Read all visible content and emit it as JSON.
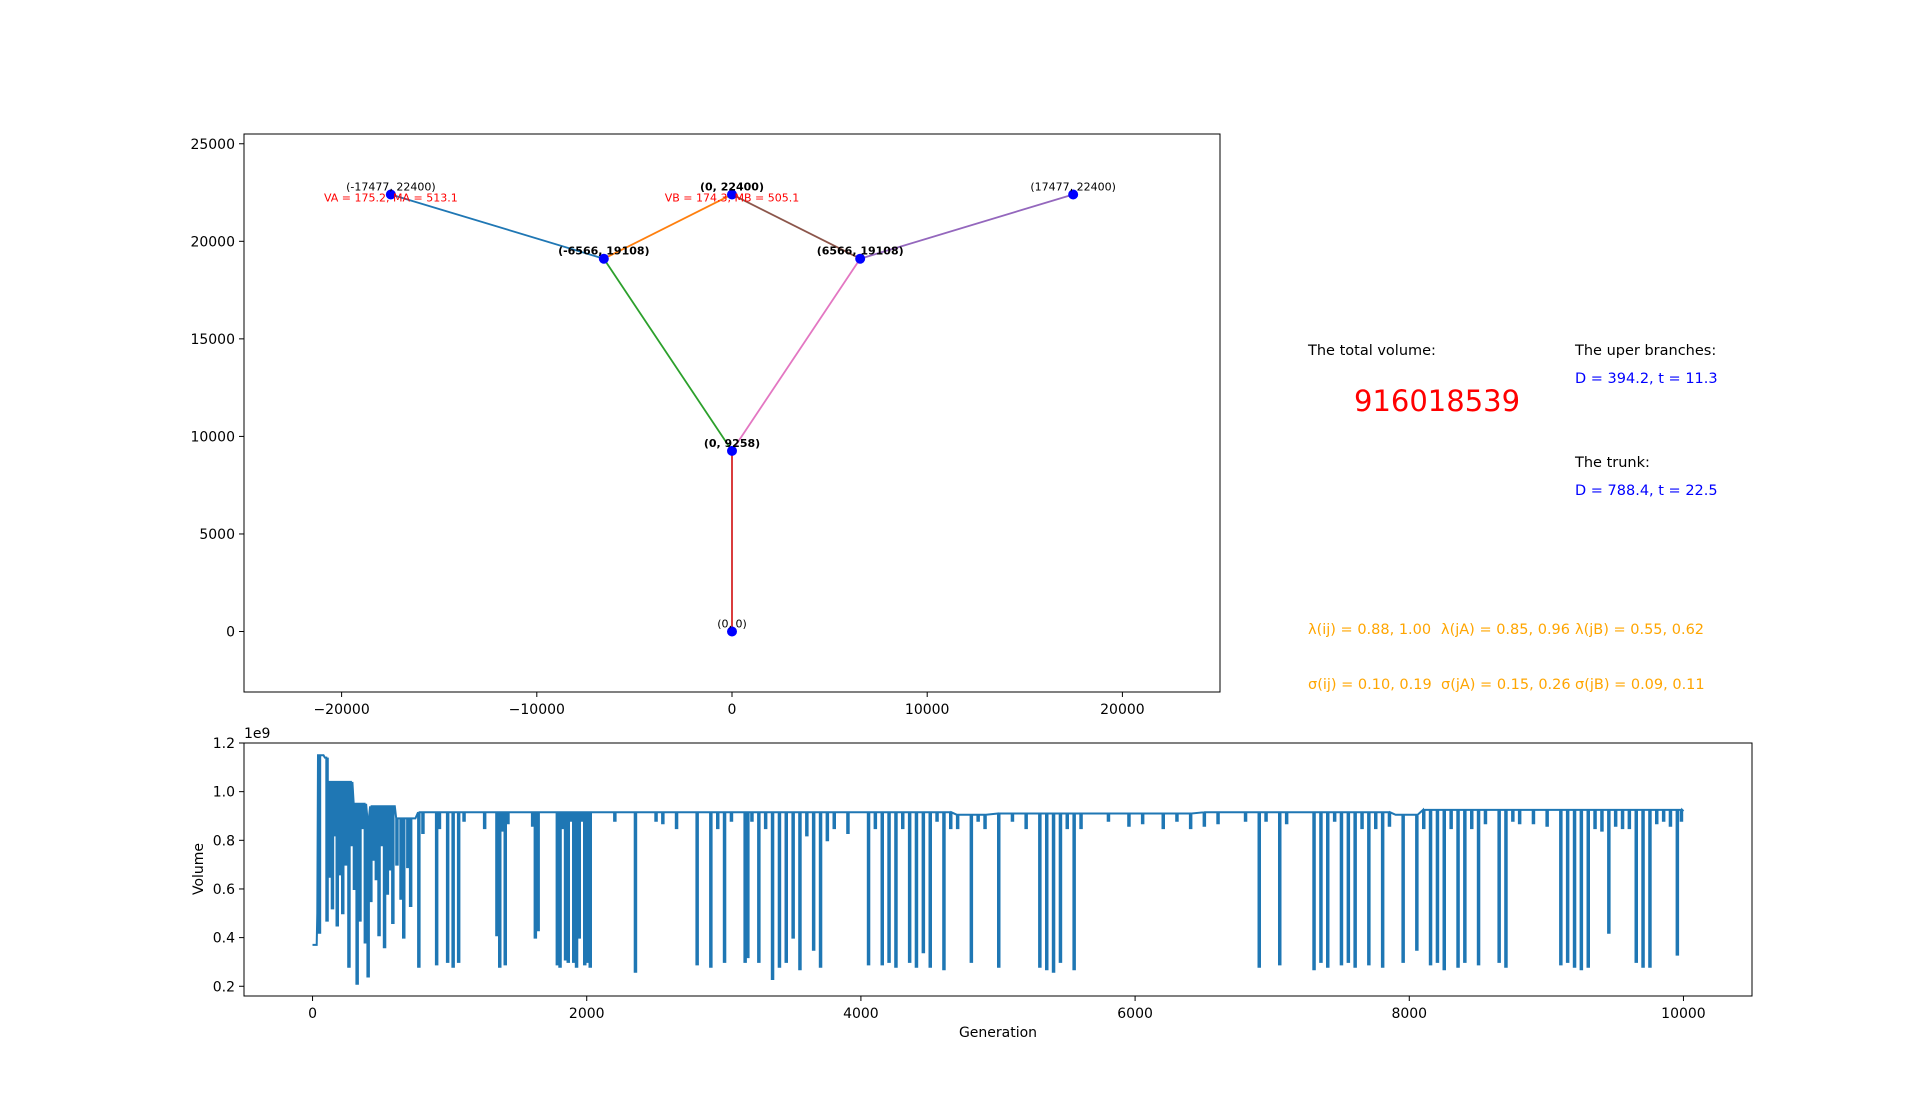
{
  "colors": {
    "axis": "#000000",
    "node": "#0000ff",
    "label_red": "#ff0000",
    "info_blue": "#0000ff",
    "info_orange": "#ffa500",
    "line_volume": "#1f77b4"
  },
  "info": {
    "total_volume_label": "The total volume:",
    "total_volume_value": "916018539",
    "upper_branches_label": "The uper branches:",
    "upper_branches_value": "D = 394.2, t = 11.3",
    "trunk_label": "The trunk:",
    "trunk_value": "D = 788.4, t = 22.5",
    "lambda_ij": "λ(ij) = 0.88, 1.00",
    "lambda_jA": "λ(jA) = 0.85, 0.96",
    "lambda_jB": "λ(jB) = 0.55, 0.62",
    "sigma_ij": "σ(ij) = 0.10, 0.19",
    "sigma_jA": "σ(jA) = 0.15, 0.26",
    "sigma_jB": "σ(jB) = 0.09, 0.11"
  },
  "chart_data": [
    {
      "type": "network",
      "xlim": [
        -25000,
        25000
      ],
      "ylim": [
        -3100,
        25500
      ],
      "x_ticks": [
        -20000,
        -10000,
        0,
        10000,
        20000
      ],
      "x_tick_labels": [
        "−20000",
        "−10000",
        "0",
        "10000",
        "20000"
      ],
      "y_ticks": [
        0,
        5000,
        10000,
        15000,
        20000,
        25000
      ],
      "y_tick_labels": [
        "0",
        "5000",
        "10000",
        "15000",
        "20000",
        "25000"
      ],
      "nodes": [
        {
          "id": "A",
          "x": -17477,
          "y": 22400,
          "label": "(-17477, 22400)",
          "bold": false
        },
        {
          "id": "B",
          "x": 0,
          "y": 22400,
          "label": "(0, 22400)",
          "bold": true
        },
        {
          "id": "C",
          "x": 17477,
          "y": 22400,
          "label": "(17477, 22400)",
          "bold": false
        },
        {
          "id": "JA",
          "x": -6566,
          "y": 19108,
          "label": "(-6566, 19108)",
          "bold": true
        },
        {
          "id": "JB",
          "x": 6566,
          "y": 19108,
          "label": "(6566, 19108)",
          "bold": true
        },
        {
          "id": "J",
          "x": 0,
          "y": 9258,
          "label": "(0, 9258)",
          "bold": true
        },
        {
          "id": "O",
          "x": 0,
          "y": 0,
          "label": "(0, 0)",
          "bold": false
        }
      ],
      "edges": [
        {
          "from": "A",
          "to": "JA",
          "color": "#1f77b4"
        },
        {
          "from": "JA",
          "to": "B",
          "color": "#ff7f0e"
        },
        {
          "from": "JA",
          "to": "J",
          "color": "#2ca02c"
        },
        {
          "from": "J",
          "to": "O",
          "color": "#d62728"
        },
        {
          "from": "C",
          "to": "JB",
          "color": "#9467bd"
        },
        {
          "from": "B",
          "to": "JB",
          "color": "#8c564b"
        },
        {
          "from": "JB",
          "to": "J",
          "color": "#e377c2"
        }
      ],
      "annotations": [
        {
          "text": "VA = 175.2, MA = 513.1",
          "x": -17477,
          "y": 22400
        },
        {
          "text": "VB = 174.3, MB = 505.1",
          "x": 0,
          "y": 22400
        }
      ]
    },
    {
      "type": "line",
      "xlabel": "Generation",
      "ylabel": "Volume",
      "offset_text": "1e9",
      "xlim": [
        -500,
        10500
      ],
      "ylim": [
        0.16,
        1.2
      ],
      "x_ticks": [
        0,
        2000,
        4000,
        6000,
        8000,
        10000
      ],
      "y_ticks": [
        0.2,
        0.4,
        0.6,
        0.8,
        1.0,
        1.2
      ],
      "y_tick_labels": [
        "0.2",
        "0.4",
        "0.6",
        "0.8",
        "1.0",
        "1.2"
      ],
      "baseline_points": [
        {
          "x": 0,
          "y": 0.37
        },
        {
          "x": 30,
          "y": 0.37
        },
        {
          "x": 35,
          "y": 0.5
        },
        {
          "x": 40,
          "y": 1.15
        },
        {
          "x": 80,
          "y": 1.15
        },
        {
          "x": 90,
          "y": 1.14
        },
        {
          "x": 110,
          "y": 1.04
        },
        {
          "x": 230,
          "y": 1.04
        },
        {
          "x": 300,
          "y": 0.95
        },
        {
          "x": 400,
          "y": 0.89
        },
        {
          "x": 420,
          "y": 0.94
        },
        {
          "x": 600,
          "y": 0.94
        },
        {
          "x": 610,
          "y": 0.89
        },
        {
          "x": 750,
          "y": 0.89
        },
        {
          "x": 770,
          "y": 0.915
        },
        {
          "x": 4300,
          "y": 0.915
        },
        {
          "x": 4700,
          "y": 0.905
        },
        {
          "x": 5000,
          "y": 0.91
        },
        {
          "x": 6500,
          "y": 0.915
        },
        {
          "x": 7800,
          "y": 0.915
        },
        {
          "x": 7900,
          "y": 0.905
        },
        {
          "x": 8000,
          "y": 0.905
        },
        {
          "x": 8100,
          "y": 0.925
        },
        {
          "x": 10000,
          "y": 0.92
        }
      ],
      "dips": [
        {
          "x": 45,
          "y": 0.42
        },
        {
          "x": 100,
          "y": 0.47
        },
        {
          "x": 120,
          "y": 0.65
        },
        {
          "x": 140,
          "y": 0.52
        },
        {
          "x": 160,
          "y": 0.82
        },
        {
          "x": 175,
          "y": 0.45
        },
        {
          "x": 195,
          "y": 0.66
        },
        {
          "x": 215,
          "y": 0.5
        },
        {
          "x": 235,
          "y": 0.7
        },
        {
          "x": 260,
          "y": 0.28
        },
        {
          "x": 280,
          "y": 0.78
        },
        {
          "x": 300,
          "y": 0.6
        },
        {
          "x": 320,
          "y": 0.21
        },
        {
          "x": 340,
          "y": 0.47
        },
        {
          "x": 360,
          "y": 0.85
        },
        {
          "x": 380,
          "y": 0.38
        },
        {
          "x": 400,
          "y": 0.24
        },
        {
          "x": 420,
          "y": 0.55
        },
        {
          "x": 440,
          "y": 0.72
        },
        {
          "x": 460,
          "y": 0.64
        },
        {
          "x": 480,
          "y": 0.41
        },
        {
          "x": 500,
          "y": 0.78
        },
        {
          "x": 520,
          "y": 0.36
        },
        {
          "x": 540,
          "y": 0.58
        },
        {
          "x": 560,
          "y": 0.68
        },
        {
          "x": 580,
          "y": 0.46
        },
        {
          "x": 610,
          "y": 0.7
        },
        {
          "x": 640,
          "y": 0.56
        },
        {
          "x": 660,
          "y": 0.4
        },
        {
          "x": 690,
          "y": 0.69
        },
        {
          "x": 710,
          "y": 0.53
        },
        {
          "x": 770,
          "y": 0.28
        },
        {
          "x": 800,
          "y": 0.83
        },
        {
          "x": 900,
          "y": 0.29
        },
        {
          "x": 920,
          "y": 0.85
        },
        {
          "x": 980,
          "y": 0.3
        },
        {
          "x": 1020,
          "y": 0.28
        },
        {
          "x": 1060,
          "y": 0.3
        },
        {
          "x": 1100,
          "y": 0.88
        },
        {
          "x": 1250,
          "y": 0.85
        },
        {
          "x": 1340,
          "y": 0.41
        },
        {
          "x": 1360,
          "y": 0.28
        },
        {
          "x": 1380,
          "y": 0.84
        },
        {
          "x": 1400,
          "y": 0.29
        },
        {
          "x": 1420,
          "y": 0.87
        },
        {
          "x": 1600,
          "y": 0.86
        },
        {
          "x": 1620,
          "y": 0.4
        },
        {
          "x": 1640,
          "y": 0.43
        },
        {
          "x": 1780,
          "y": 0.29
        },
        {
          "x": 1800,
          "y": 0.28
        },
        {
          "x": 1820,
          "y": 0.85
        },
        {
          "x": 1840,
          "y": 0.31
        },
        {
          "x": 1860,
          "y": 0.3
        },
        {
          "x": 1880,
          "y": 0.88
        },
        {
          "x": 1900,
          "y": 0.3
        },
        {
          "x": 1920,
          "y": 0.28
        },
        {
          "x": 1940,
          "y": 0.4
        },
        {
          "x": 1960,
          "y": 0.88
        },
        {
          "x": 1980,
          "y": 0.29
        },
        {
          "x": 2000,
          "y": 0.3
        },
        {
          "x": 2020,
          "y": 0.28
        },
        {
          "x": 2200,
          "y": 0.88
        },
        {
          "x": 2350,
          "y": 0.26
        },
        {
          "x": 2500,
          "y": 0.88
        },
        {
          "x": 2550,
          "y": 0.87
        },
        {
          "x": 2650,
          "y": 0.85
        },
        {
          "x": 2800,
          "y": 0.29
        },
        {
          "x": 2900,
          "y": 0.28
        },
        {
          "x": 2950,
          "y": 0.85
        },
        {
          "x": 3000,
          "y": 0.3
        },
        {
          "x": 3050,
          "y": 0.88
        },
        {
          "x": 3150,
          "y": 0.3
        },
        {
          "x": 3170,
          "y": 0.32
        },
        {
          "x": 3200,
          "y": 0.88
        },
        {
          "x": 3250,
          "y": 0.3
        },
        {
          "x": 3300,
          "y": 0.85
        },
        {
          "x": 3350,
          "y": 0.23
        },
        {
          "x": 3400,
          "y": 0.28
        },
        {
          "x": 3450,
          "y": 0.3
        },
        {
          "x": 3500,
          "y": 0.4
        },
        {
          "x": 3550,
          "y": 0.27
        },
        {
          "x": 3600,
          "y": 0.82
        },
        {
          "x": 3650,
          "y": 0.35
        },
        {
          "x": 3700,
          "y": 0.28
        },
        {
          "x": 3750,
          "y": 0.8
        },
        {
          "x": 3800,
          "y": 0.85
        },
        {
          "x": 3900,
          "y": 0.83
        },
        {
          "x": 4050,
          "y": 0.29
        },
        {
          "x": 4100,
          "y": 0.85
        },
        {
          "x": 4150,
          "y": 0.29
        },
        {
          "x": 4200,
          "y": 0.3
        },
        {
          "x": 4250,
          "y": 0.28
        },
        {
          "x": 4300,
          "y": 0.85
        },
        {
          "x": 4350,
          "y": 0.3
        },
        {
          "x": 4400,
          "y": 0.28
        },
        {
          "x": 4450,
          "y": 0.34
        },
        {
          "x": 4500,
          "y": 0.28
        },
        {
          "x": 4550,
          "y": 0.88
        },
        {
          "x": 4600,
          "y": 0.27
        },
        {
          "x": 4650,
          "y": 0.85
        },
        {
          "x": 4700,
          "y": 0.85
        },
        {
          "x": 4800,
          "y": 0.3
        },
        {
          "x": 4850,
          "y": 0.88
        },
        {
          "x": 4900,
          "y": 0.85
        },
        {
          "x": 5000,
          "y": 0.28
        },
        {
          "x": 5100,
          "y": 0.88
        },
        {
          "x": 5200,
          "y": 0.85
        },
        {
          "x": 5300,
          "y": 0.28
        },
        {
          "x": 5350,
          "y": 0.27
        },
        {
          "x": 5400,
          "y": 0.26
        },
        {
          "x": 5450,
          "y": 0.3
        },
        {
          "x": 5500,
          "y": 0.85
        },
        {
          "x": 5550,
          "y": 0.27
        },
        {
          "x": 5600,
          "y": 0.85
        },
        {
          "x": 5800,
          "y": 0.88
        },
        {
          "x": 5950,
          "y": 0.86
        },
        {
          "x": 6050,
          "y": 0.87
        },
        {
          "x": 6200,
          "y": 0.85
        },
        {
          "x": 6300,
          "y": 0.88
        },
        {
          "x": 6400,
          "y": 0.85
        },
        {
          "x": 6500,
          "y": 0.86
        },
        {
          "x": 6600,
          "y": 0.87
        },
        {
          "x": 6800,
          "y": 0.88
        },
        {
          "x": 6900,
          "y": 0.28
        },
        {
          "x": 6950,
          "y": 0.88
        },
        {
          "x": 7050,
          "y": 0.29
        },
        {
          "x": 7100,
          "y": 0.87
        },
        {
          "x": 7300,
          "y": 0.27
        },
        {
          "x": 7350,
          "y": 0.3
        },
        {
          "x": 7400,
          "y": 0.28
        },
        {
          "x": 7450,
          "y": 0.88
        },
        {
          "x": 7500,
          "y": 0.29
        },
        {
          "x": 7550,
          "y": 0.3
        },
        {
          "x": 7600,
          "y": 0.28
        },
        {
          "x": 7650,
          "y": 0.85
        },
        {
          "x": 7700,
          "y": 0.29
        },
        {
          "x": 7750,
          "y": 0.85
        },
        {
          "x": 7800,
          "y": 0.28
        },
        {
          "x": 7850,
          "y": 0.86
        },
        {
          "x": 7950,
          "y": 0.3
        },
        {
          "x": 8050,
          "y": 0.35
        },
        {
          "x": 8100,
          "y": 0.85
        },
        {
          "x": 8150,
          "y": 0.29
        },
        {
          "x": 8200,
          "y": 0.3
        },
        {
          "x": 8250,
          "y": 0.27
        },
        {
          "x": 8300,
          "y": 0.85
        },
        {
          "x": 8350,
          "y": 0.28
        },
        {
          "x": 8400,
          "y": 0.3
        },
        {
          "x": 8450,
          "y": 0.85
        },
        {
          "x": 8500,
          "y": 0.29
        },
        {
          "x": 8550,
          "y": 0.87
        },
        {
          "x": 8650,
          "y": 0.3
        },
        {
          "x": 8700,
          "y": 0.28
        },
        {
          "x": 8750,
          "y": 0.88
        },
        {
          "x": 8800,
          "y": 0.87
        },
        {
          "x": 8900,
          "y": 0.87
        },
        {
          "x": 9000,
          "y": 0.86
        },
        {
          "x": 9100,
          "y": 0.29
        },
        {
          "x": 9150,
          "y": 0.3
        },
        {
          "x": 9200,
          "y": 0.28
        },
        {
          "x": 9250,
          "y": 0.27
        },
        {
          "x": 9300,
          "y": 0.28
        },
        {
          "x": 9350,
          "y": 0.85
        },
        {
          "x": 9400,
          "y": 0.84
        },
        {
          "x": 9450,
          "y": 0.42
        },
        {
          "x": 9500,
          "y": 0.86
        },
        {
          "x": 9550,
          "y": 0.85
        },
        {
          "x": 9600,
          "y": 0.85
        },
        {
          "x": 9650,
          "y": 0.3
        },
        {
          "x": 9700,
          "y": 0.28
        },
        {
          "x": 9750,
          "y": 0.28
        },
        {
          "x": 9800,
          "y": 0.87
        },
        {
          "x": 9850,
          "y": 0.88
        },
        {
          "x": 9900,
          "y": 0.86
        },
        {
          "x": 9950,
          "y": 0.33
        },
        {
          "x": 9980,
          "y": 0.88
        }
      ]
    }
  ]
}
